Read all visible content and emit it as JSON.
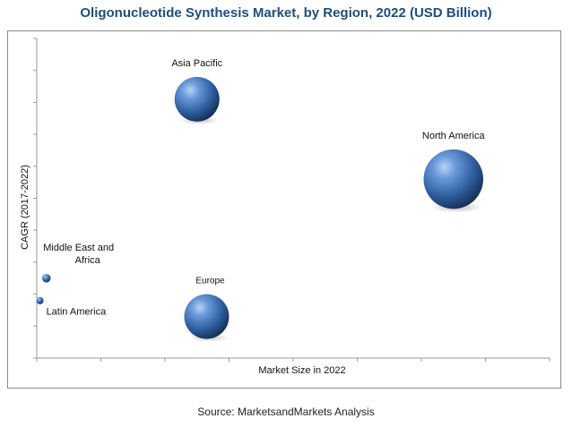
{
  "chart_data": {
    "type": "scatter",
    "variant": "bubble",
    "title": "Oligonucleotide Synthesis Market, by Region, 2022 (USD Billion)",
    "xlabel": "Market Size in 2022",
    "ylabel": "CAGR (2017-2022)",
    "xlim": [
      0,
      8
    ],
    "ylim": [
      0,
      10
    ],
    "grid": false,
    "tick_labels_shown": false,
    "bubble_color": "#3b6fb6",
    "points": [
      {
        "label": "Asia Pacific",
        "x": 2.5,
        "y": 8.1,
        "size": 1.0
      },
      {
        "label": "North America",
        "x": 6.5,
        "y": 5.6,
        "size": 2.4
      },
      {
        "label": "Europe",
        "x": 2.65,
        "y": 1.3,
        "size": 1.0
      },
      {
        "label": "Middle East and Africa",
        "x": 0.15,
        "y": 2.5,
        "size": 0.12
      },
      {
        "label": "Latin America",
        "x": 0.05,
        "y": 1.8,
        "size": 0.06
      }
    ]
  },
  "source": "Source: MarketsandMarkets Analysis"
}
